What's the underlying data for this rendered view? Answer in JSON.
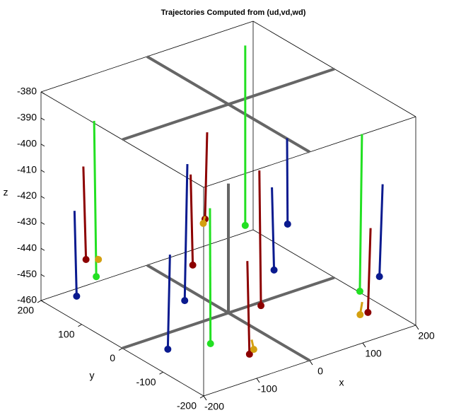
{
  "chart_data": {
    "type": "trajectory3d",
    "title": "Trajectories Computed from (ud,vd,wd)",
    "xlabel": "x",
    "ylabel": "y",
    "zlabel": "z",
    "xlim": [
      -200,
      200
    ],
    "ylim": [
      -200,
      200
    ],
    "zlim": [
      -460,
      -380
    ],
    "xticks": [
      -200,
      -100,
      0,
      100,
      200
    ],
    "yticks": [
      -200,
      -100,
      0,
      100,
      200
    ],
    "zticks": [
      -460,
      -450,
      -440,
      -430,
      -420,
      -410,
      -400,
      -390,
      -380
    ],
    "trajectories": [
      {
        "color": "#0a1a8f",
        "x": [
          -179,
          -175
        ],
        "y": [
          145,
          145
        ],
        "z": [
          -422,
          -455
        ]
      },
      {
        "color": "#8c0000",
        "x": [
          -147,
          -142
        ],
        "y": [
          165,
          165
        ],
        "z": [
          -409,
          -445
        ]
      },
      {
        "color": "#22e022",
        "x": [
          -142,
          -138
        ],
        "y": [
          145,
          145
        ],
        "z": [
          -390,
          -450
        ]
      },
      {
        "color": "#d4a010",
        "x": [
          -130,
          -127
        ],
        "y": [
          154,
          154
        ],
        "z": [
          -443.5,
          -445
        ]
      },
      {
        "color": "#0a1a8f",
        "x": [
          -170,
          -174
        ],
        "y": [
          -78,
          -78
        ],
        "z": [
          -419,
          -455
        ]
      },
      {
        "color": "#22e022",
        "x": [
          -139,
          -138
        ],
        "y": [
          -136,
          -136
        ],
        "z": [
          -398,
          -450
        ]
      },
      {
        "color": "#8c0000",
        "x": [
          -90,
          -86
        ],
        "y": [
          -164,
          -164
        ],
        "z": [
          -419,
          -455
        ]
      },
      {
        "color": "#d4a010",
        "x": [
          -75,
          -71
        ],
        "y": [
          -155,
          -155
        ],
        "z": [
          -451,
          -455
        ]
      },
      {
        "color": "#0a1a8f",
        "x": [
          -49,
          -54
        ],
        "y": [
          37,
          37
        ],
        "z": [
          -403,
          -455
        ]
      },
      {
        "color": "#8c0000",
        "x": [
          -29,
          -25
        ],
        "y": [
          55,
          55
        ],
        "z": [
          -410,
          -445
        ]
      },
      {
        "color": "#8c0000",
        "x": [
          88,
          84
        ],
        "y": [
          167,
          167
        ],
        "z": [
          -412,
          -445
        ]
      },
      {
        "color": "#d4a010",
        "x": [
          76,
          73
        ],
        "y": [
          157,
          157
        ],
        "z": [
          -442.5,
          -445
        ]
      },
      {
        "color": "#22e022",
        "x": [
          146,
          146
        ],
        "y": [
          149,
          149
        ],
        "z": [
          -381,
          -450
        ]
      },
      {
        "color": "#0a1a8f",
        "x": [
          112,
          116
        ],
        "y": [
          39,
          39
        ],
        "z": [
          -423,
          -455
        ]
      },
      {
        "color": "#8c0000",
        "x": [
          -29,
          -26
        ],
        "y": [
          -114,
          -114
        ],
        "z": [
          -393,
          -445
        ]
      },
      {
        "color": "#0a1a8f",
        "x": [
          172,
          173
        ],
        "y": [
          80,
          80
        ],
        "z": [
          -412,
          -445
        ]
      },
      {
        "color": "#22e022",
        "x": [
          153,
          149
        ],
        "y": [
          -129,
          -129
        ],
        "z": [
          -390,
          -450
        ]
      },
      {
        "color": "#8c0000",
        "x": [
          147,
          142
        ],
        "y": [
          -158,
          -158
        ],
        "z": [
          -423,
          -455
        ]
      },
      {
        "color": "#0a1a8f",
        "x": [
          182,
          176
        ],
        "y": [
          -142,
          -142
        ],
        "z": [
          -410,
          -445
        ]
      },
      {
        "color": "#d4a010",
        "x": [
          132,
          128
        ],
        "y": [
          -157,
          -157
        ],
        "z": [
          -450.4,
          -455
        ]
      }
    ]
  }
}
